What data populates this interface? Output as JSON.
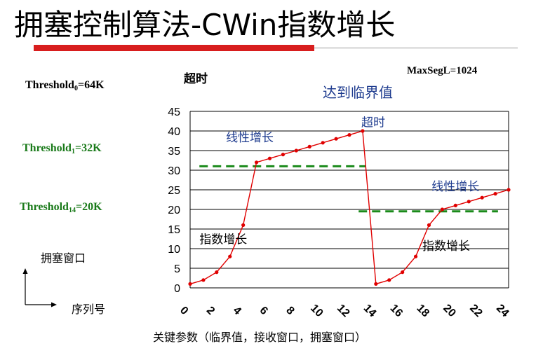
{
  "title": "拥塞控制算法-CWin指数增长",
  "labels": {
    "timeout_top": "超时",
    "max_seg": "MaxSegL=1024",
    "reach_threshold": "达到临界值",
    "threshold0": {
      "name": "Threshold",
      "sub": "0",
      "value": "=64K"
    },
    "threshold1": {
      "name": "Threshold",
      "sub": "1",
      "value": "=32K"
    },
    "threshold14": {
      "name": "Threshold",
      "sub": "14",
      "value": "=20K"
    },
    "cwnd_axis": "拥塞窗口",
    "seq_axis": "序列号",
    "key_params": "关键参数（临界值，接收窗口，拥塞窗口）"
  },
  "colors": {
    "line": "#e00000",
    "threshold": "#1a8a1a",
    "annotation_blue": "#1f3c8f",
    "title_bar": "#d81e1e"
  },
  "chart_data": {
    "type": "line",
    "xlim": [
      0,
      24
    ],
    "ylim": [
      0,
      45
    ],
    "x_ticks": [
      0,
      2,
      4,
      6,
      8,
      10,
      12,
      14,
      16,
      18,
      20,
      22,
      24
    ],
    "y_ticks": [
      0,
      5,
      10,
      15,
      20,
      25,
      30,
      35,
      40,
      45
    ],
    "grid": "horizontal",
    "series": [
      {
        "name": "CWin",
        "x": [
          0,
          1,
          2,
          3,
          4,
          5,
          6,
          7,
          8,
          9,
          10,
          11,
          12,
          13,
          14,
          15,
          16,
          17,
          18,
          19,
          20,
          21,
          22,
          23,
          24
        ],
        "values": [
          1,
          2,
          4,
          8,
          16,
          32,
          33,
          34,
          35,
          36,
          37,
          38,
          39,
          40,
          1,
          2,
          4,
          8,
          16,
          20,
          21,
          22,
          23,
          24,
          25
        ]
      }
    ],
    "thresholds": [
      {
        "y": 31,
        "x_start": 0.7,
        "x_end": 13.2
      },
      {
        "y": 19.5,
        "x_start": 12.7,
        "x_end": 23.2
      }
    ],
    "annotations": [
      {
        "text": "线性增长",
        "x": 2.7,
        "y": 37.3,
        "color": "#1f3c8f"
      },
      {
        "text": "超时",
        "x": 12.9,
        "y": 41.2,
        "color": "#1f3c8f"
      },
      {
        "text": "线性增长",
        "x": 18.2,
        "y": 24.8,
        "color": "#1f3c8f"
      },
      {
        "text": "指数增长",
        "x": 0.7,
        "y": 11.3,
        "color": "#000000"
      },
      {
        "text": "指数增长",
        "x": 17.5,
        "y": 9.6,
        "color": "#000000"
      }
    ]
  }
}
